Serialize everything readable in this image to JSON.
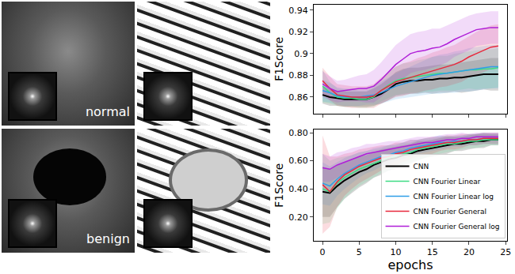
{
  "images": [
    "normal",
    "benign"
  ],
  "chart_data": [
    {
      "type": "line",
      "ylabel": "F1Score",
      "x": [
        0,
        1,
        2,
        3,
        4,
        5,
        6,
        7,
        8,
        9,
        10,
        11,
        12,
        13,
        14,
        15,
        16,
        17,
        18,
        19,
        20,
        21,
        22,
        23,
        24
      ],
      "xlim": [
        -1.2,
        25.2
      ],
      "xticks": [
        0,
        5,
        10,
        15,
        20,
        25
      ],
      "ylim": [
        0.845,
        0.945
      ],
      "yticks": [
        0.86,
        0.88,
        0.9,
        0.92,
        0.94
      ],
      "tick_labels": "y",
      "series": [
        {
          "name": "CNN",
          "color": "#000000",
          "values": [
            0.862,
            0.86,
            0.859,
            0.858,
            0.858,
            0.858,
            0.858,
            0.86,
            0.863,
            0.867,
            0.872,
            0.874,
            0.875,
            0.875,
            0.876,
            0.876,
            0.877,
            0.877,
            0.878,
            0.878,
            0.879,
            0.88,
            0.881,
            0.881,
            0.881
          ],
          "std": [
            0.008,
            0.008,
            0.007,
            0.007,
            0.007,
            0.007,
            0.007,
            0.008,
            0.009,
            0.01,
            0.011,
            0.012,
            0.012,
            0.012,
            0.012,
            0.013,
            0.013,
            0.013,
            0.013,
            0.014,
            0.014,
            0.014,
            0.014,
            0.015,
            0.015
          ]
        },
        {
          "name": "CNN Fourier Linear",
          "color": "#3ddc84",
          "values": [
            0.87,
            0.864,
            0.86,
            0.859,
            0.859,
            0.858,
            0.858,
            0.86,
            0.866,
            0.871,
            0.875,
            0.877,
            0.878,
            0.879,
            0.88,
            0.881,
            0.882,
            0.882,
            0.883,
            0.884,
            0.885,
            0.885,
            0.886,
            0.886,
            0.887
          ],
          "std": [
            0.015,
            0.01,
            0.008,
            0.008,
            0.008,
            0.008,
            0.008,
            0.009,
            0.01,
            0.012,
            0.013,
            0.014,
            0.014,
            0.015,
            0.015,
            0.016,
            0.016,
            0.016,
            0.017,
            0.017,
            0.017,
            0.018,
            0.018,
            0.018,
            0.018
          ]
        },
        {
          "name": "CNN Fourier Linear log",
          "color": "#2f9ee8",
          "values": [
            0.866,
            0.864,
            0.861,
            0.86,
            0.86,
            0.86,
            0.861,
            0.862,
            0.864,
            0.867,
            0.87,
            0.872,
            0.874,
            0.876,
            0.878,
            0.88,
            0.881,
            0.882,
            0.883,
            0.884,
            0.885,
            0.886,
            0.887,
            0.888,
            0.888
          ],
          "std": [
            0.01,
            0.009,
            0.008,
            0.008,
            0.008,
            0.008,
            0.008,
            0.009,
            0.01,
            0.011,
            0.012,
            0.013,
            0.014,
            0.015,
            0.016,
            0.017,
            0.018,
            0.018,
            0.019,
            0.019,
            0.02,
            0.02,
            0.02,
            0.02,
            0.02
          ]
        },
        {
          "name": "CNN Fourier General",
          "color": "#e8283c",
          "values": [
            0.875,
            0.868,
            0.862,
            0.861,
            0.86,
            0.86,
            0.86,
            0.861,
            0.866,
            0.87,
            0.874,
            0.876,
            0.878,
            0.88,
            0.882,
            0.884,
            0.886,
            0.888,
            0.89,
            0.893,
            0.897,
            0.9,
            0.903,
            0.906,
            0.907
          ],
          "std": [
            0.012,
            0.011,
            0.01,
            0.01,
            0.01,
            0.01,
            0.01,
            0.011,
            0.012,
            0.013,
            0.014,
            0.015,
            0.015,
            0.016,
            0.016,
            0.017,
            0.017,
            0.018,
            0.018,
            0.019,
            0.019,
            0.02,
            0.02,
            0.02,
            0.02
          ]
        },
        {
          "name": "CNN Fourier General log",
          "color": "#b01fd8",
          "values": [
            0.872,
            0.868,
            0.865,
            0.866,
            0.867,
            0.868,
            0.868,
            0.87,
            0.876,
            0.883,
            0.89,
            0.895,
            0.9,
            0.902,
            0.903,
            0.905,
            0.906,
            0.909,
            0.913,
            0.916,
            0.919,
            0.922,
            0.923,
            0.924,
            0.924
          ],
          "std": [
            0.012,
            0.011,
            0.01,
            0.01,
            0.011,
            0.012,
            0.013,
            0.015,
            0.016,
            0.017,
            0.018,
            0.018,
            0.018,
            0.018,
            0.018,
            0.018,
            0.017,
            0.017,
            0.016,
            0.016,
            0.016,
            0.015,
            0.015,
            0.015,
            0.015
          ]
        }
      ]
    },
    {
      "type": "line",
      "ylabel": "F1Score",
      "xlabel": "epochs",
      "legend": "lower right",
      "x": [
        0,
        1,
        2,
        3,
        4,
        5,
        6,
        7,
        8,
        9,
        10,
        11,
        12,
        13,
        14,
        15,
        16,
        17,
        18,
        19,
        20,
        21,
        22,
        23,
        24
      ],
      "xlim": [
        -1.2,
        25.2
      ],
      "xticks": [
        0,
        5,
        10,
        15,
        20,
        25
      ],
      "ylim": [
        0.03,
        0.82
      ],
      "yticks": [
        {
          "value": 0.2,
          "label": "0.20"
        },
        {
          "value": 0.4,
          "label": "0.40"
        },
        {
          "value": 0.6,
          "label": "0.60"
        },
        {
          "value": 0.8,
          "label": "0.80"
        }
      ],
      "series": [
        {
          "name": "CNN",
          "color": "#000000",
          "values": [
            0.38,
            0.37,
            0.42,
            0.46,
            0.49,
            0.52,
            0.54,
            0.57,
            0.59,
            0.61,
            0.62,
            0.64,
            0.65,
            0.67,
            0.68,
            0.69,
            0.7,
            0.71,
            0.72,
            0.72,
            0.73,
            0.74,
            0.74,
            0.75,
            0.75
          ],
          "std": [
            0.18,
            0.17,
            0.15,
            0.13,
            0.12,
            0.11,
            0.1,
            0.09,
            0.09,
            0.08,
            0.08,
            0.07,
            0.07,
            0.07,
            0.06,
            0.06,
            0.06,
            0.06,
            0.05,
            0.05,
            0.05,
            0.05,
            0.05,
            0.04,
            0.04
          ]
        },
        {
          "name": "CNN Fourier Linear",
          "color": "#3ddc84",
          "values": [
            0.4,
            0.38,
            0.44,
            0.48,
            0.51,
            0.54,
            0.56,
            0.58,
            0.6,
            0.62,
            0.63,
            0.65,
            0.66,
            0.68,
            0.69,
            0.7,
            0.71,
            0.72,
            0.72,
            0.73,
            0.74,
            0.74,
            0.75,
            0.75,
            0.75
          ],
          "std": [
            0.25,
            0.22,
            0.18,
            0.15,
            0.13,
            0.12,
            0.11,
            0.1,
            0.09,
            0.09,
            0.08,
            0.08,
            0.07,
            0.07,
            0.07,
            0.06,
            0.06,
            0.06,
            0.05,
            0.05,
            0.05,
            0.05,
            0.05,
            0.04,
            0.04
          ]
        },
        {
          "name": "CNN Fourier Linear log",
          "color": "#2f9ee8",
          "values": [
            0.44,
            0.42,
            0.47,
            0.51,
            0.54,
            0.57,
            0.59,
            0.61,
            0.63,
            0.64,
            0.66,
            0.67,
            0.69,
            0.7,
            0.71,
            0.72,
            0.73,
            0.73,
            0.74,
            0.74,
            0.75,
            0.75,
            0.76,
            0.76,
            0.76
          ],
          "std": [
            0.15,
            0.14,
            0.12,
            0.11,
            0.1,
            0.09,
            0.08,
            0.08,
            0.07,
            0.07,
            0.06,
            0.06,
            0.06,
            0.05,
            0.05,
            0.05,
            0.05,
            0.04,
            0.04,
            0.04,
            0.04,
            0.04,
            0.04,
            0.04,
            0.04
          ]
        },
        {
          "name": "CNN Fourier General",
          "color": "#e8283c",
          "values": [
            0.43,
            0.38,
            0.45,
            0.5,
            0.53,
            0.56,
            0.58,
            0.6,
            0.62,
            0.63,
            0.65,
            0.66,
            0.68,
            0.69,
            0.7,
            0.71,
            0.72,
            0.73,
            0.73,
            0.74,
            0.75,
            0.75,
            0.76,
            0.76,
            0.76
          ],
          "std": [
            0.35,
            0.25,
            0.18,
            0.15,
            0.13,
            0.12,
            0.11,
            0.1,
            0.09,
            0.08,
            0.08,
            0.07,
            0.07,
            0.06,
            0.06,
            0.06,
            0.05,
            0.05,
            0.05,
            0.05,
            0.04,
            0.04,
            0.04,
            0.04,
            0.04
          ]
        },
        {
          "name": "CNN Fourier General log",
          "color": "#b01fd8",
          "values": [
            0.55,
            0.54,
            0.57,
            0.59,
            0.61,
            0.63,
            0.65,
            0.66,
            0.67,
            0.68,
            0.69,
            0.7,
            0.71,
            0.72,
            0.73,
            0.73,
            0.74,
            0.75,
            0.75,
            0.76,
            0.76,
            0.77,
            0.77,
            0.77,
            0.77
          ],
          "std": [
            0.1,
            0.09,
            0.09,
            0.08,
            0.08,
            0.07,
            0.07,
            0.06,
            0.06,
            0.06,
            0.05,
            0.05,
            0.05,
            0.05,
            0.04,
            0.04,
            0.04,
            0.04,
            0.04,
            0.04,
            0.03,
            0.03,
            0.03,
            0.03,
            0.03
          ]
        }
      ]
    }
  ]
}
